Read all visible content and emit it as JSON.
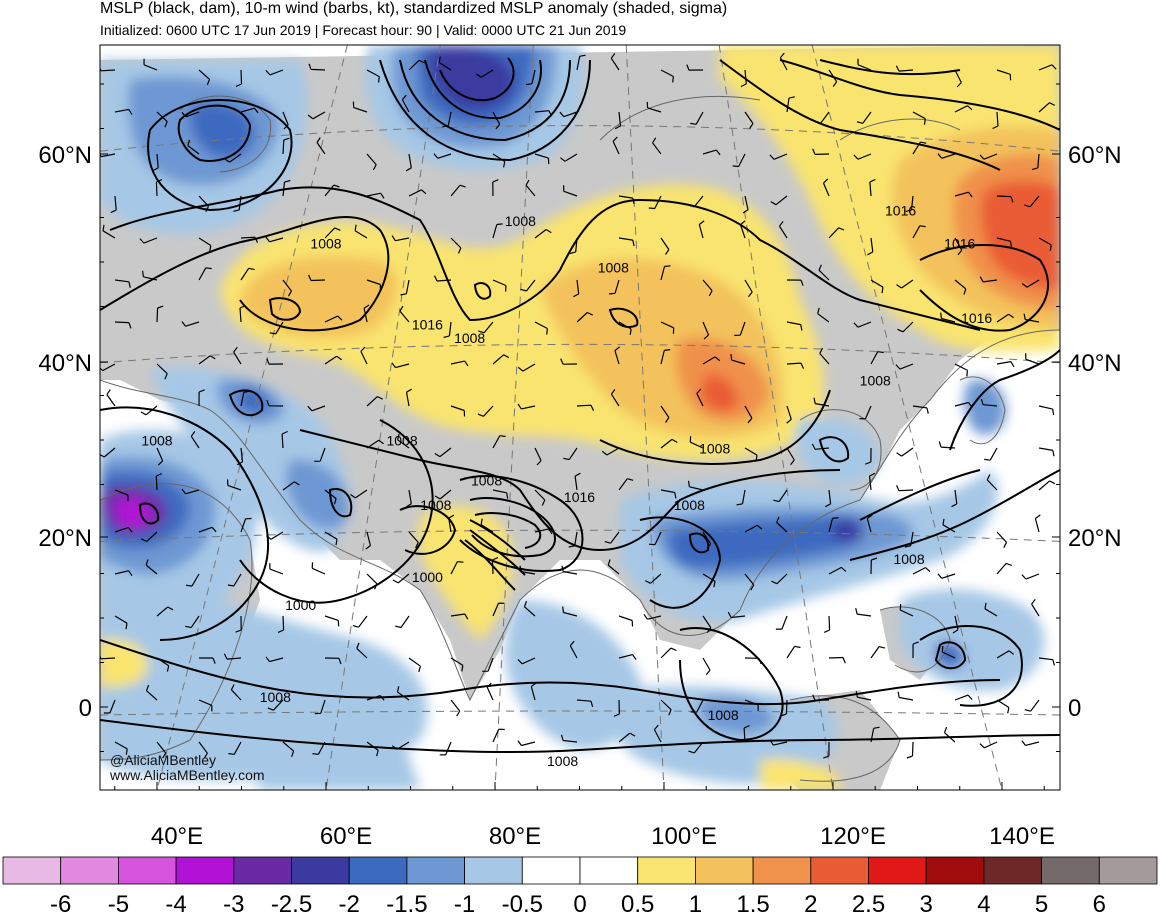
{
  "header": {
    "title": "MSLP (black, dam), 10-m wind (barbs, kt), standardized MSLP anomaly (shaded, sigma)",
    "subtitle": "Initialized: 0600 UTC 17 Jun 2019 | Forecast hour: 90 | Valid: 0000 UTC 21 Jun 2019"
  },
  "credits": {
    "handle": "@AliciaMBentley",
    "website": "www.AliciaMBentley.com"
  },
  "chart_data": {
    "type": "heatmap",
    "title": "MSLP (black, dam), 10-m wind (barbs, kt), standardized MSLP anomaly (shaded, sigma)",
    "subtitle": "Initialized: 0600 UTC 17 Jun 2019 | Forecast hour: 90 | Valid: 0000 UTC 21 Jun 2019",
    "lat_ticks": [
      {
        "label": "60°N",
        "value": 60
      },
      {
        "label": "40°N",
        "value": 40
      },
      {
        "label": "20°N",
        "value": 20
      },
      {
        "label": "0",
        "value": 0
      }
    ],
    "lon_ticks": [
      {
        "label": "40°E",
        "value": 40
      },
      {
        "label": "60°E",
        "value": 60
      },
      {
        "label": "80°E",
        "value": 80
      },
      {
        "label": "100°E",
        "value": 100
      },
      {
        "label": "120°E",
        "value": 120
      },
      {
        "label": "140°E",
        "value": 140
      }
    ],
    "colorbar": {
      "labels": [
        "-6",
        "-5",
        "-4",
        "-3",
        "-2.5",
        "-2",
        "-1.5",
        "-1",
        "-0.5",
        "0",
        "0.5",
        "1",
        "1.5",
        "2",
        "2.5",
        "3",
        "4",
        "5",
        "6"
      ],
      "colors": [
        "#e9b9e6",
        "#e28ae0",
        "#d655dc",
        "#b212d6",
        "#6a2aa6",
        "#3a3aa0",
        "#3c6ac0",
        "#6e98d3",
        "#a6c8e6",
        "#ffffff",
        "#ffffff",
        "#f9e470",
        "#f3c25c",
        "#f0914c",
        "#ea5c34",
        "#e01818",
        "#a00c0c",
        "#6e2828",
        "#746a6a",
        "#a39a9a"
      ]
    },
    "isobar_labels_dam": [
      {
        "label": "1008",
        "lon": 60,
        "lat": 59
      },
      {
        "label": "1008",
        "lon": 83,
        "lat": 63
      },
      {
        "label": "1008",
        "lon": 94,
        "lat": 55
      },
      {
        "label": "1016",
        "lon": 128,
        "lat": 65
      },
      {
        "label": "1016",
        "lon": 135,
        "lat": 59
      },
      {
        "label": "1016",
        "lon": 72,
        "lat": 46
      },
      {
        "label": "1008",
        "lon": 77,
        "lat": 44
      },
      {
        "label": "1016",
        "lon": 137,
        "lat": 47
      },
      {
        "label": "1008",
        "lon": 125,
        "lat": 38
      },
      {
        "label": "1008",
        "lon": 40,
        "lat": 30
      },
      {
        "label": "1008",
        "lon": 69,
        "lat": 30
      },
      {
        "label": "1008",
        "lon": 106,
        "lat": 29
      },
      {
        "label": "1008",
        "lon": 79,
        "lat": 25
      },
      {
        "label": "1008",
        "lon": 73,
        "lat": 22
      },
      {
        "label": "1016",
        "lon": 90,
        "lat": 23
      },
      {
        "label": "1008",
        "lon": 103,
        "lat": 22
      },
      {
        "label": "1008",
        "lon": 129,
        "lat": 16
      },
      {
        "label": "1000",
        "lon": 72,
        "lat": 14
      },
      {
        "label": "1000",
        "lon": 57,
        "lat": 11
      },
      {
        "label": "1008",
        "lon": 54,
        "lat": 1
      },
      {
        "label": "1008",
        "lon": 107,
        "lat": -1
      },
      {
        "label": "1008",
        "lon": 88,
        "lat": -6
      }
    ],
    "anomaly_features": [
      {
        "name": "deep negative (~ -3 to -4 sigma) over Sudan",
        "lon": 38,
        "lat": 22,
        "value": -3.5
      },
      {
        "name": "negative over northern Urals / Kara region",
        "lon": 78,
        "lat": 66,
        "value": -2.5
      },
      {
        "name": "negative over Scandinavia",
        "lon": 48,
        "lat": 62,
        "value": -1.7
      },
      {
        "name": "positive over eastern Europe",
        "lon": 55,
        "lat": 48,
        "value": 1.2
      },
      {
        "name": "positive over Mongolia / Gobi",
        "lon": 108,
        "lat": 40,
        "value": 2.0
      },
      {
        "name": "positive over Sea of Okhotsk / Kamchatka",
        "lon": 142,
        "lat": 56,
        "value": 2.3
      },
      {
        "name": "positive along northern India",
        "lon": 80,
        "lat": 20,
        "value": 0.8
      },
      {
        "name": "negative over South China",
        "lon": 115,
        "lat": 20,
        "value": -1.7
      },
      {
        "name": "negative Arabian Sea / Indian Ocean",
        "lon": 60,
        "lat": 5,
        "value": -1.0
      }
    ]
  }
}
